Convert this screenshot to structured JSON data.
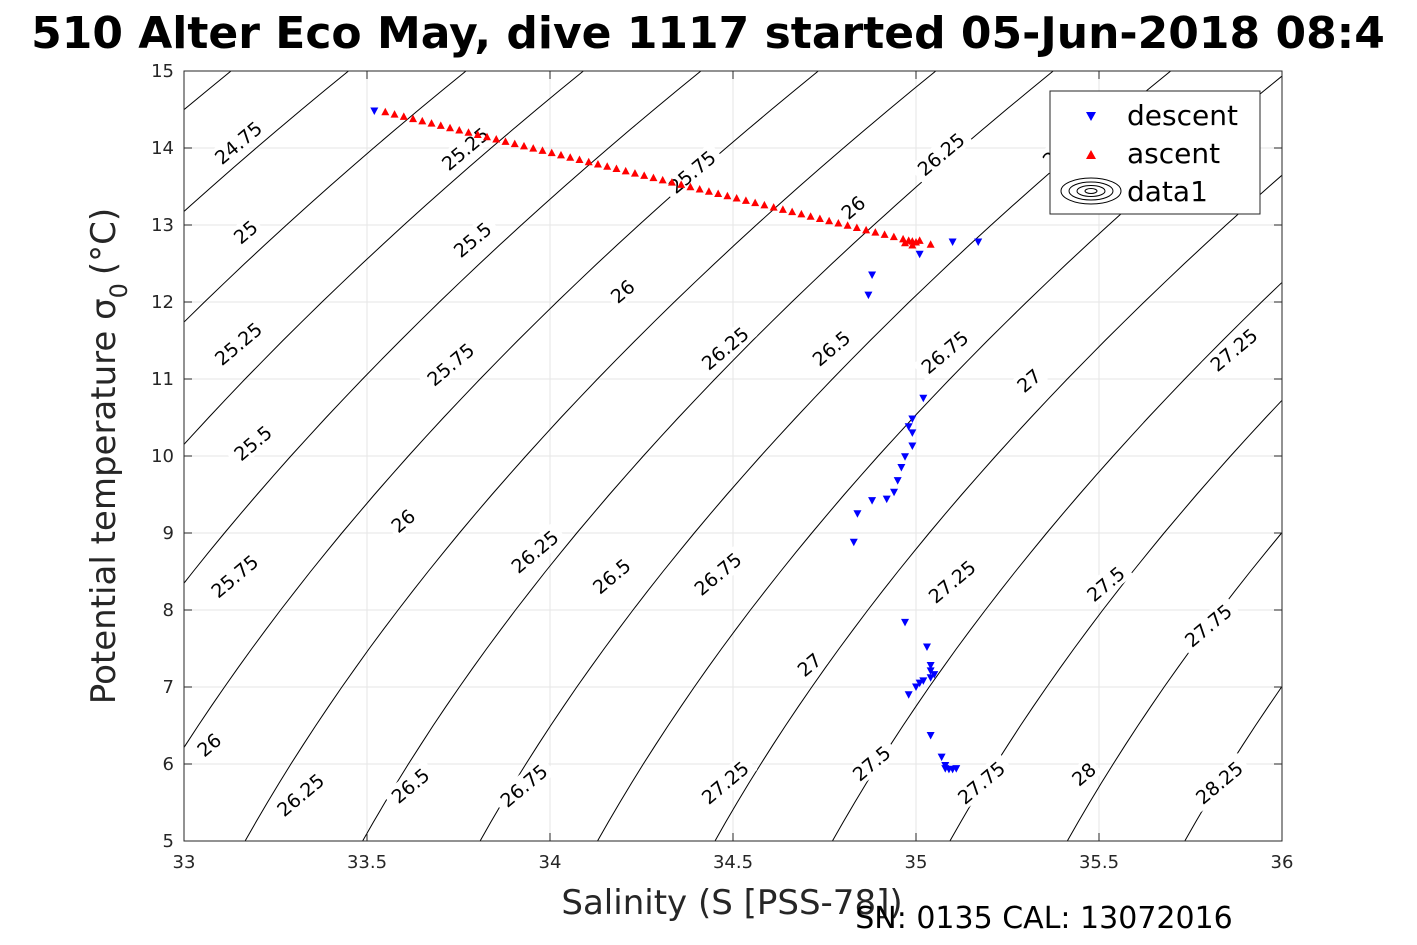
{
  "chart_data": {
    "type": "scatter",
    "title": "510 Alter Eco May, dive 1117 started 05-Jun-2018 08:4",
    "xlabel": "Salinity (S [PSS-78])",
    "ylabel_main": "Potential temperature σ",
    "ylabel_subscript": "0",
    "ylabel_unit": "(°C)",
    "xlim": [
      33,
      36
    ],
    "ylim": [
      5,
      15
    ],
    "x_ticks": [
      "33",
      "33.5",
      "34",
      "34.5",
      "35",
      "35.5",
      "36"
    ],
    "y_ticks": [
      "5",
      "6",
      "7",
      "8",
      "9",
      "10",
      "11",
      "12",
      "13",
      "14",
      "15"
    ],
    "grid": true,
    "legend_position": "top-right",
    "colors": {
      "descent": "#0000ff",
      "ascent": "#ff0000",
      "contour": "#000000",
      "grid": "#e6e6e6"
    },
    "contours": {
      "levels": [
        24.75,
        25,
        25.25,
        25.5,
        25.75,
        26,
        26.25,
        26.5,
        26.75,
        27,
        27.25,
        27.5,
        27.75,
        28,
        28.25
      ],
      "labels": [
        {
          "text": "24.75",
          "s": 33.15,
          "t": 14.06
        },
        {
          "text": "25",
          "s": 33.17,
          "t": 12.9
        },
        {
          "text": "25.25",
          "s": 33.15,
          "t": 11.45
        },
        {
          "text": "25.5",
          "s": 33.19,
          "t": 10.16
        },
        {
          "text": "25.75",
          "s": 33.14,
          "t": 8.43
        },
        {
          "text": "26",
          "s": 33.07,
          "t": 6.24
        },
        {
          "text": "25.25",
          "s": 33.77,
          "t": 13.98
        },
        {
          "text": "25.5",
          "s": 33.79,
          "t": 12.8
        },
        {
          "text": "25.75",
          "s": 33.73,
          "t": 11.18
        },
        {
          "text": "26",
          "s": 33.6,
          "t": 9.15
        },
        {
          "text": "26.25",
          "s": 33.32,
          "t": 5.59
        },
        {
          "text": "25.75",
          "s": 34.39,
          "t": 13.68
        },
        {
          "text": "26",
          "s": 34.2,
          "t": 12.13
        },
        {
          "text": "26.25",
          "s": 33.96,
          "t": 8.75
        },
        {
          "text": "26.5",
          "s": 33.62,
          "t": 5.71
        },
        {
          "text": "26",
          "s": 34.83,
          "t": 13.22
        },
        {
          "text": "26.25",
          "s": 34.48,
          "t": 11.39
        },
        {
          "text": "26.5",
          "s": 34.17,
          "t": 8.43
        },
        {
          "text": "26.75",
          "s": 33.93,
          "t": 5.71
        },
        {
          "text": "26.25",
          "s": 35.07,
          "t": 13.91
        },
        {
          "text": "26.5",
          "s": 34.77,
          "t": 11.39
        },
        {
          "text": "26.75",
          "s": 34.46,
          "t": 8.46
        },
        {
          "text": "27",
          "s": 34.71,
          "t": 7.28
        },
        {
          "text": "26.75",
          "s": 35.08,
          "t": 11.34
        },
        {
          "text": "27",
          "s": 35.31,
          "t": 10.97
        },
        {
          "text": "27.25",
          "s": 35.1,
          "t": 8.36
        },
        {
          "text": "27.25",
          "s": 34.48,
          "t": 5.75
        },
        {
          "text": "27.5",
          "s": 34.88,
          "t": 6.0
        },
        {
          "text": "27.5",
          "s": 35.52,
          "t": 8.33
        },
        {
          "text": "27.75",
          "s": 35.18,
          "t": 5.75
        },
        {
          "text": "27.25",
          "s": 35.87,
          "t": 11.37
        },
        {
          "text": "27.75",
          "s": 35.8,
          "t": 7.79
        },
        {
          "text": "28",
          "s": 35.46,
          "t": 5.86
        },
        {
          "text": "28.25",
          "s": 35.83,
          "t": 5.75
        },
        {
          "text": "26",
          "s": 35.38,
          "t": 13.9
        }
      ]
    },
    "series": [
      {
        "name": "descent",
        "marker": "triangle-down",
        "points": [
          [
            33.52,
            14.48
          ],
          [
            35.01,
            12.62
          ],
          [
            35.1,
            12.78
          ],
          [
            35.17,
            12.78
          ],
          [
            34.88,
            12.35
          ],
          [
            34.87,
            12.09
          ],
          [
            35.02,
            10.75
          ],
          [
            34.99,
            10.48
          ],
          [
            34.98,
            10.38
          ],
          [
            34.99,
            10.3
          ],
          [
            34.99,
            10.13
          ],
          [
            34.97,
            9.99
          ],
          [
            34.96,
            9.85
          ],
          [
            34.95,
            9.68
          ],
          [
            34.94,
            9.53
          ],
          [
            34.92,
            9.44
          ],
          [
            34.88,
            9.42
          ],
          [
            34.84,
            9.25
          ],
          [
            34.83,
            8.88
          ],
          [
            34.97,
            7.84
          ],
          [
            35.03,
            7.52
          ],
          [
            35.04,
            7.28
          ],
          [
            35.04,
            7.21
          ],
          [
            35.05,
            7.16
          ],
          [
            35.04,
            7.12
          ],
          [
            35.02,
            7.08
          ],
          [
            35.01,
            7.05
          ],
          [
            35.0,
            7.0
          ],
          [
            34.98,
            6.9
          ],
          [
            35.04,
            6.37
          ],
          [
            35.07,
            6.09
          ],
          [
            35.08,
            5.98
          ],
          [
            35.08,
            5.94
          ],
          [
            35.09,
            5.93
          ],
          [
            35.1,
            5.93
          ],
          [
            35.11,
            5.94
          ]
        ]
      },
      {
        "name": "ascent",
        "marker": "triangle-up",
        "start": [
          33.55,
          14.47
        ],
        "end": [
          34.99,
          12.79
        ],
        "count": 58,
        "extra_points": [
          [
            34.97,
            12.77
          ],
          [
            34.98,
            12.8
          ],
          [
            35.0,
            12.78
          ],
          [
            35.01,
            12.8
          ],
          [
            35.04,
            12.75
          ],
          [
            34.99,
            12.74
          ]
        ]
      },
      {
        "name": "data1",
        "marker": "contour-icon"
      }
    ]
  },
  "footer": {
    "sn_cal": "SN: 0135  CAL: 13072016"
  }
}
